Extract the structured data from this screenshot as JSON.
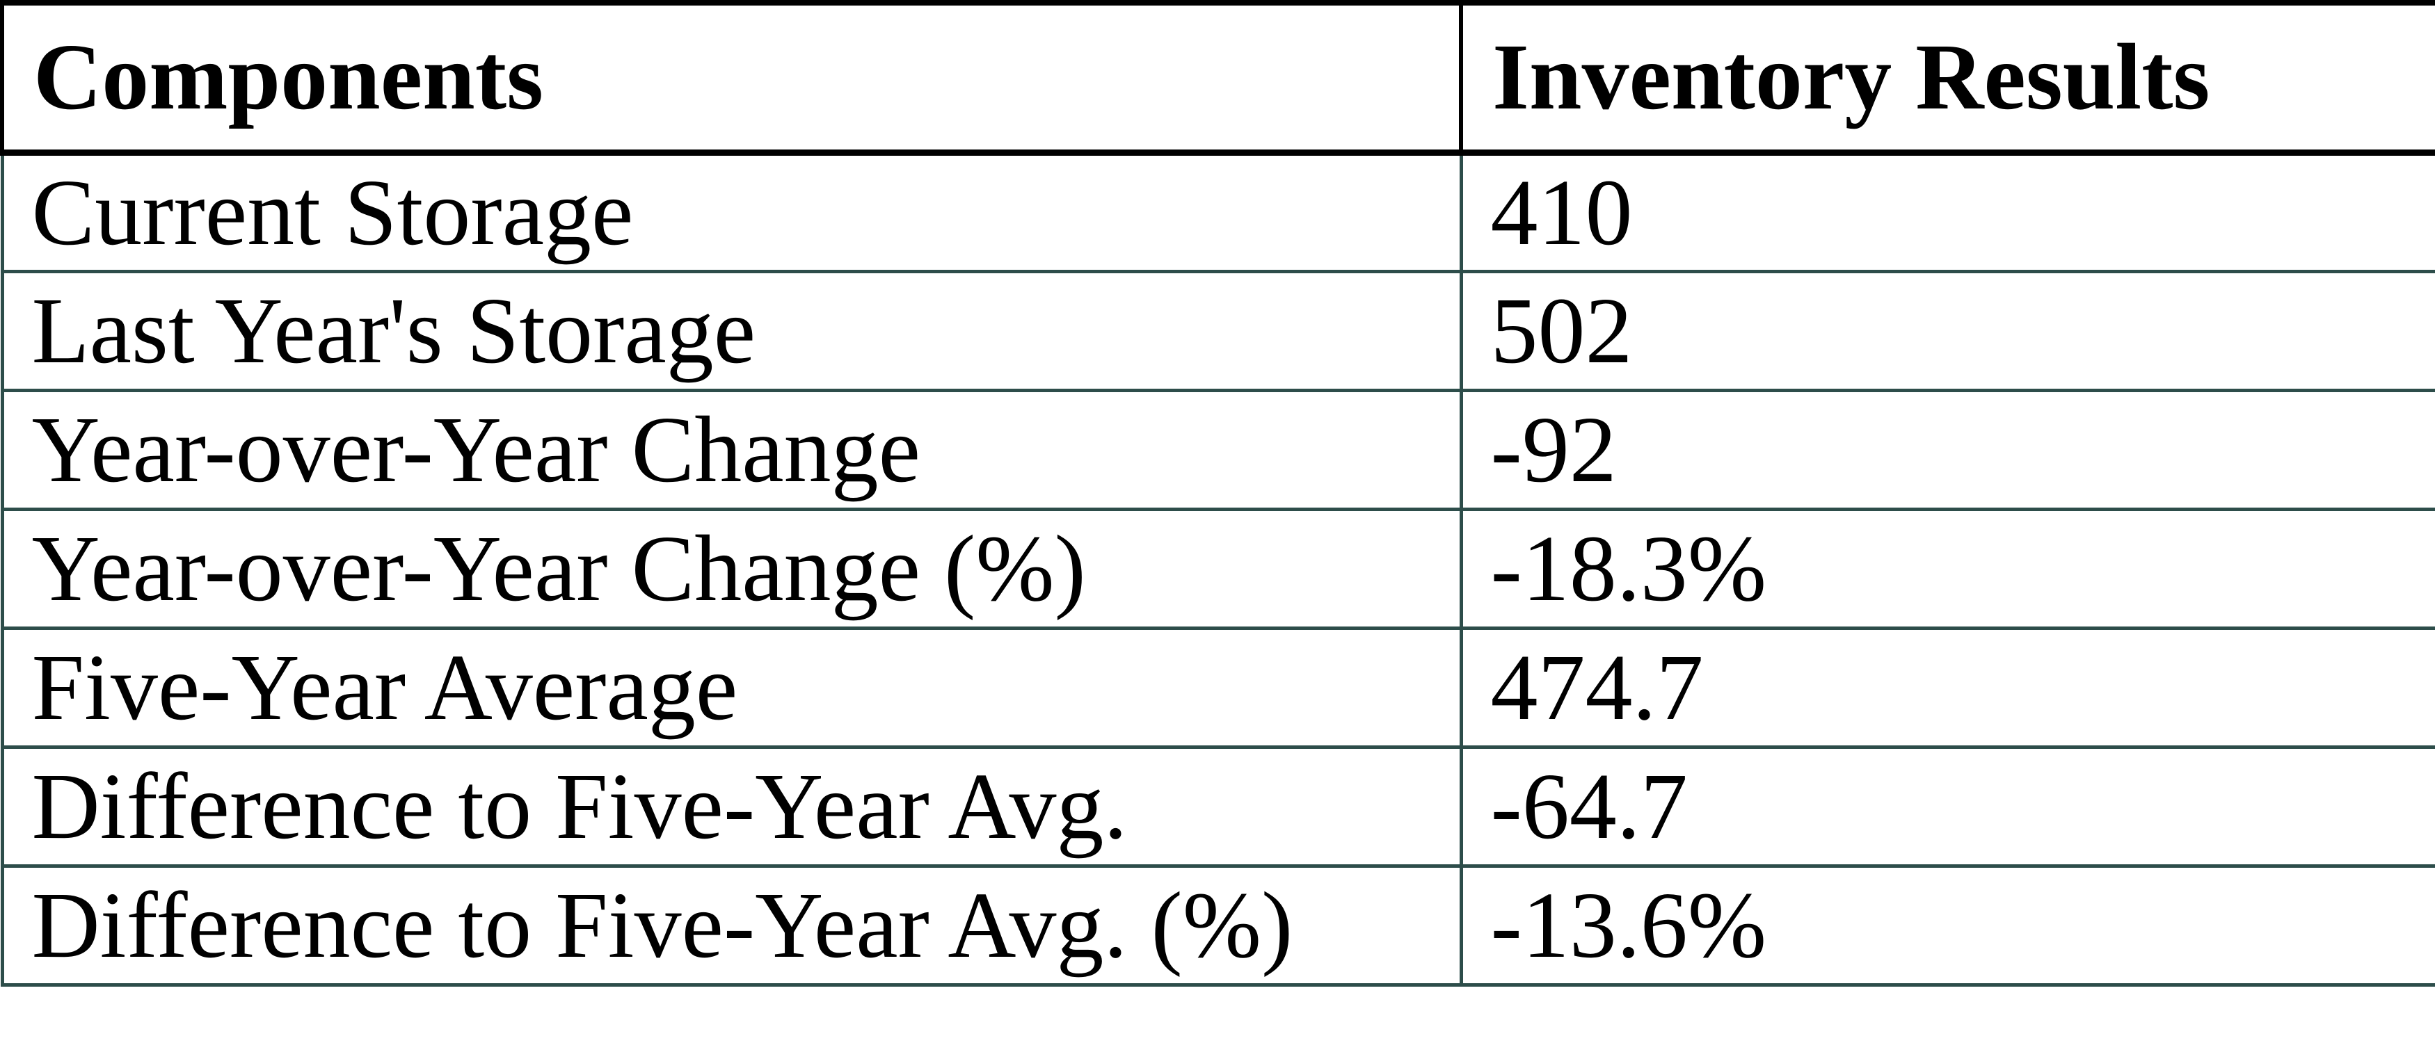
{
  "table": {
    "columns": [
      "Components",
      "Inventory Results"
    ],
    "rows": [
      {
        "component": "Current Storage",
        "result": "410"
      },
      {
        "component": "Last Year's Storage",
        "result": "502"
      },
      {
        "component": "Year-over-Year Change",
        "result": "-92"
      },
      {
        "component": "Year-over-Year Change (%)",
        "result": "-18.3%"
      },
      {
        "component": "Five-Year Average",
        "result": "474.7"
      },
      {
        "component": "Difference to Five-Year Avg.",
        "result": "-64.7"
      },
      {
        "component": "Difference to Five-Year Avg. (%)",
        "result": "-13.6%"
      }
    ]
  },
  "colors": {
    "body_grid": "#2D4D4A",
    "header_border": "#000000",
    "text": "#000000",
    "background": "#FFFFFF"
  },
  "chart_data": {
    "type": "table",
    "title": "",
    "columns": [
      "Components",
      "Inventory Results"
    ],
    "records": [
      [
        "Current Storage",
        410
      ],
      [
        "Last Year's Storage",
        502
      ],
      [
        "Year-over-Year Change",
        -92
      ],
      [
        "Year-over-Year Change (%)",
        "-18.3%"
      ],
      [
        "Five-Year Average",
        474.7
      ],
      [
        "Difference to Five-Year Avg.",
        -64.7
      ],
      [
        "Difference to Five-Year Avg. (%)",
        "-13.6%"
      ]
    ]
  }
}
